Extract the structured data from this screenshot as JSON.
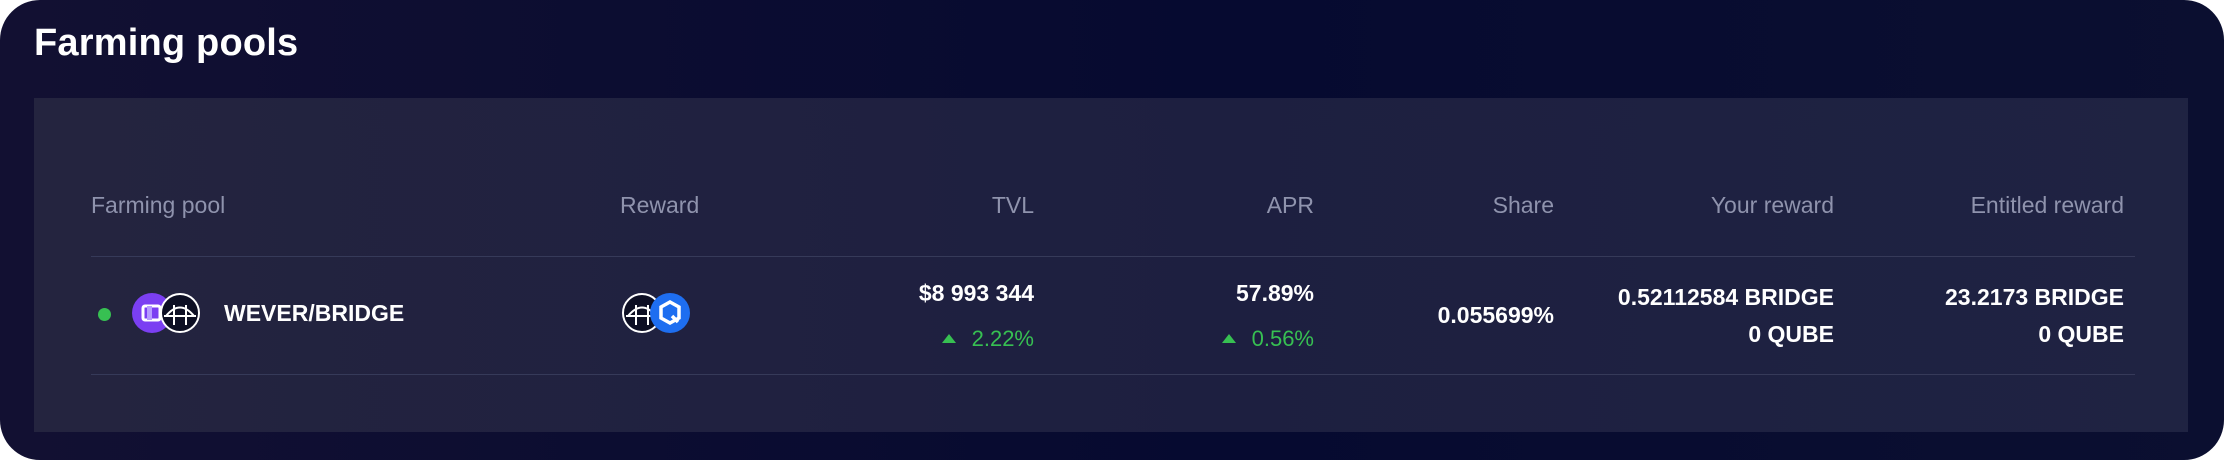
{
  "page": {
    "title": "Farming pools"
  },
  "colors": {
    "positive": "#37c052",
    "header_text": "#8f93ad",
    "panel_bg": "#1f2140",
    "wever_icon": "#7b3ff2",
    "qube_icon": "#1e6ef0"
  },
  "table": {
    "columns": [
      "Farming pool",
      "Reward",
      "TVL",
      "APR",
      "Share",
      "Your reward",
      "Entitled reward"
    ],
    "rows": [
      {
        "pool_name": "WEVER/BRIDGE",
        "pool_icons": [
          "wever-token-icon",
          "bridge-token-icon"
        ],
        "reward_icons": [
          "bridge-token-icon",
          "qube-token-icon"
        ],
        "tvl": "$8 993 344",
        "tvl_change": "2.22%",
        "apr": "57.89%",
        "apr_change": "0.56%",
        "share": "0.055699%",
        "your_reward": [
          "0.52112584 BRIDGE",
          "0 QUBE"
        ],
        "entitled_reward": [
          "23.2173 BRIDGE",
          "0 QUBE"
        ]
      }
    ]
  }
}
